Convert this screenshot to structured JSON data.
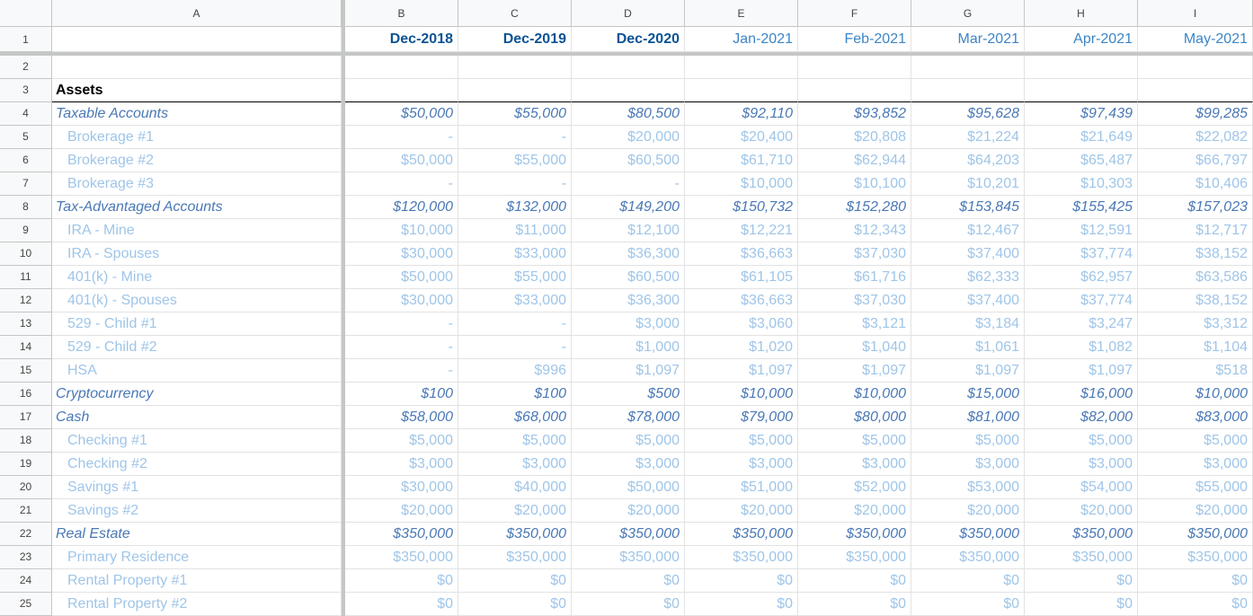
{
  "columns": [
    "A",
    "B",
    "C",
    "D",
    "E",
    "F",
    "G",
    "H",
    "I"
  ],
  "header": {
    "num": "1",
    "values": [
      "Dec-2018",
      "Dec-2019",
      "Dec-2020",
      "Jan-2021",
      "Feb-2021",
      "Mar-2021",
      "Apr-2021",
      "May-2021"
    ],
    "bold": [
      true,
      true,
      true,
      false,
      false,
      false,
      false,
      false
    ]
  },
  "rows": [
    {
      "num": "2"
    },
    {
      "num": "3",
      "label": "Assets",
      "style": "title"
    },
    {
      "num": "4",
      "label": "Taxable Accounts",
      "style": "category",
      "values": [
        "$50,000",
        "$55,000",
        "$80,500",
        "$92,110",
        "$93,852",
        "$95,628",
        "$97,439",
        "$99,285"
      ]
    },
    {
      "num": "5",
      "label": "Brokerage #1",
      "style": "item",
      "values": [
        "-",
        "-",
        "$20,000",
        "$20,400",
        "$20,808",
        "$21,224",
        "$21,649",
        "$22,082"
      ]
    },
    {
      "num": "6",
      "label": "Brokerage #2",
      "style": "item",
      "values": [
        "$50,000",
        "$55,000",
        "$60,500",
        "$61,710",
        "$62,944",
        "$64,203",
        "$65,487",
        "$66,797"
      ]
    },
    {
      "num": "7",
      "label": "Brokerage #3",
      "style": "item",
      "values": [
        "-",
        "-",
        "-",
        "$10,000",
        "$10,100",
        "$10,201",
        "$10,303",
        "$10,406"
      ]
    },
    {
      "num": "8",
      "label": "Tax-Advantaged Accounts",
      "style": "category",
      "values": [
        "$120,000",
        "$132,000",
        "$149,200",
        "$150,732",
        "$152,280",
        "$153,845",
        "$155,425",
        "$157,023"
      ]
    },
    {
      "num": "9",
      "label": "IRA - Mine",
      "style": "item",
      "values": [
        "$10,000",
        "$11,000",
        "$12,100",
        "$12,221",
        "$12,343",
        "$12,467",
        "$12,591",
        "$12,717"
      ]
    },
    {
      "num": "10",
      "label": "IRA - Spouses",
      "style": "item",
      "values": [
        "$30,000",
        "$33,000",
        "$36,300",
        "$36,663",
        "$37,030",
        "$37,400",
        "$37,774",
        "$38,152"
      ]
    },
    {
      "num": "11",
      "label": "401(k) - Mine",
      "style": "item",
      "values": [
        "$50,000",
        "$55,000",
        "$60,500",
        "$61,105",
        "$61,716",
        "$62,333",
        "$62,957",
        "$63,586"
      ]
    },
    {
      "num": "12",
      "label": "401(k) - Spouses",
      "style": "item",
      "values": [
        "$30,000",
        "$33,000",
        "$36,300",
        "$36,663",
        "$37,030",
        "$37,400",
        "$37,774",
        "$38,152"
      ]
    },
    {
      "num": "13",
      "label": "529 - Child #1",
      "style": "item",
      "values": [
        "-",
        "-",
        "$3,000",
        "$3,060",
        "$3,121",
        "$3,184",
        "$3,247",
        "$3,312"
      ]
    },
    {
      "num": "14",
      "label": "529 - Child #2",
      "style": "item",
      "values": [
        "-",
        "-",
        "$1,000",
        "$1,020",
        "$1,040",
        "$1,061",
        "$1,082",
        "$1,104"
      ]
    },
    {
      "num": "15",
      "label": "HSA",
      "style": "item",
      "values": [
        "-",
        "$996",
        "$1,097",
        "$1,097",
        "$1,097",
        "$1,097",
        "$1,097",
        "$518"
      ]
    },
    {
      "num": "16",
      "label": "Cryptocurrency",
      "style": "category",
      "values": [
        "$100",
        "$100",
        "$500",
        "$10,000",
        "$10,000",
        "$15,000",
        "$16,000",
        "$10,000"
      ]
    },
    {
      "num": "17",
      "label": "Cash",
      "style": "category",
      "values": [
        "$58,000",
        "$68,000",
        "$78,000",
        "$79,000",
        "$80,000",
        "$81,000",
        "$82,000",
        "$83,000"
      ]
    },
    {
      "num": "18",
      "label": "Checking #1",
      "style": "item",
      "values": [
        "$5,000",
        "$5,000",
        "$5,000",
        "$5,000",
        "$5,000",
        "$5,000",
        "$5,000",
        "$5,000"
      ]
    },
    {
      "num": "19",
      "label": "Checking #2",
      "style": "item",
      "values": [
        "$3,000",
        "$3,000",
        "$3,000",
        "$3,000",
        "$3,000",
        "$3,000",
        "$3,000",
        "$3,000"
      ]
    },
    {
      "num": "20",
      "label": "Savings #1",
      "style": "item",
      "values": [
        "$30,000",
        "$40,000",
        "$50,000",
        "$51,000",
        "$52,000",
        "$53,000",
        "$54,000",
        "$55,000"
      ]
    },
    {
      "num": "21",
      "label": "Savings #2",
      "style": "item",
      "values": [
        "$20,000",
        "$20,000",
        "$20,000",
        "$20,000",
        "$20,000",
        "$20,000",
        "$20,000",
        "$20,000"
      ]
    },
    {
      "num": "22",
      "label": "Real Estate",
      "style": "category",
      "values": [
        "$350,000",
        "$350,000",
        "$350,000",
        "$350,000",
        "$350,000",
        "$350,000",
        "$350,000",
        "$350,000"
      ]
    },
    {
      "num": "23",
      "label": "Primary Residence",
      "style": "item",
      "values": [
        "$350,000",
        "$350,000",
        "$350,000",
        "$350,000",
        "$350,000",
        "$350,000",
        "$350,000",
        "$350,000"
      ]
    },
    {
      "num": "24",
      "label": "Rental Property #1",
      "style": "item",
      "values": [
        "$0",
        "$0",
        "$0",
        "$0",
        "$0",
        "$0",
        "$0",
        "$0"
      ]
    },
    {
      "num": "25",
      "label": "Rental Property #2",
      "style": "item",
      "values": [
        "$0",
        "$0",
        "$0",
        "$0",
        "$0",
        "$0",
        "$0",
        "$0"
      ]
    }
  ]
}
